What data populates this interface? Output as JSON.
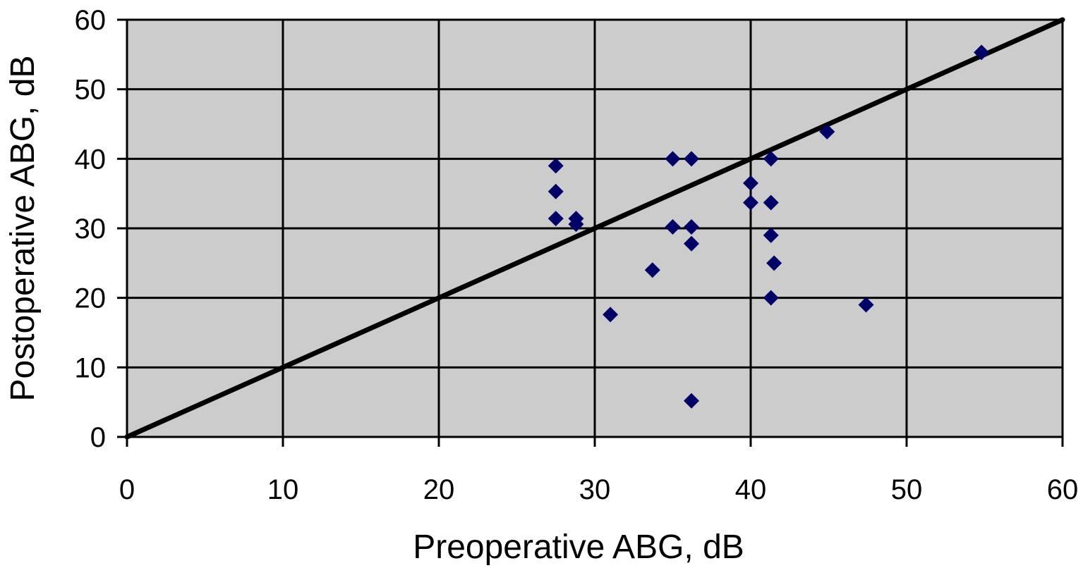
{
  "chart_data": {
    "type": "scatter",
    "title": "",
    "xlabel": "Preoperative ABG, dB",
    "ylabel": "Postoperative ABG, dB",
    "xlim": [
      0,
      60
    ],
    "ylim": [
      0,
      60
    ],
    "x_ticks": [
      "0",
      "10",
      "20",
      "30",
      "40",
      "50",
      "60"
    ],
    "y_ticks": [
      "0",
      "10",
      "20",
      "30",
      "40",
      "50",
      "60"
    ],
    "grid": true,
    "legend": "none",
    "plot_background": "#cccccc",
    "marker_color": "#000066",
    "marker_shape": "diamond",
    "reference_line": {
      "from": [
        0,
        0
      ],
      "to": [
        60,
        60
      ]
    },
    "series": [
      {
        "points": [
          [
            27.5,
            39.0
          ],
          [
            27.5,
            35.3
          ],
          [
            27.5,
            31.4
          ],
          [
            28.8,
            31.4
          ],
          [
            28.8,
            30.6
          ],
          [
            31.0,
            17.6
          ],
          [
            33.7,
            24.0
          ],
          [
            35.0,
            40.0
          ],
          [
            35.0,
            30.2
          ],
          [
            36.2,
            40.0
          ],
          [
            36.2,
            30.2
          ],
          [
            36.2,
            27.8
          ],
          [
            36.2,
            5.2
          ],
          [
            40.0,
            36.5
          ],
          [
            40.0,
            33.7
          ],
          [
            41.3,
            40.0
          ],
          [
            41.3,
            33.7
          ],
          [
            41.3,
            29.0
          ],
          [
            41.5,
            25.0
          ],
          [
            41.3,
            20.0
          ],
          [
            44.9,
            43.9
          ],
          [
            47.4,
            19.0
          ],
          [
            54.8,
            55.3
          ]
        ]
      }
    ]
  }
}
